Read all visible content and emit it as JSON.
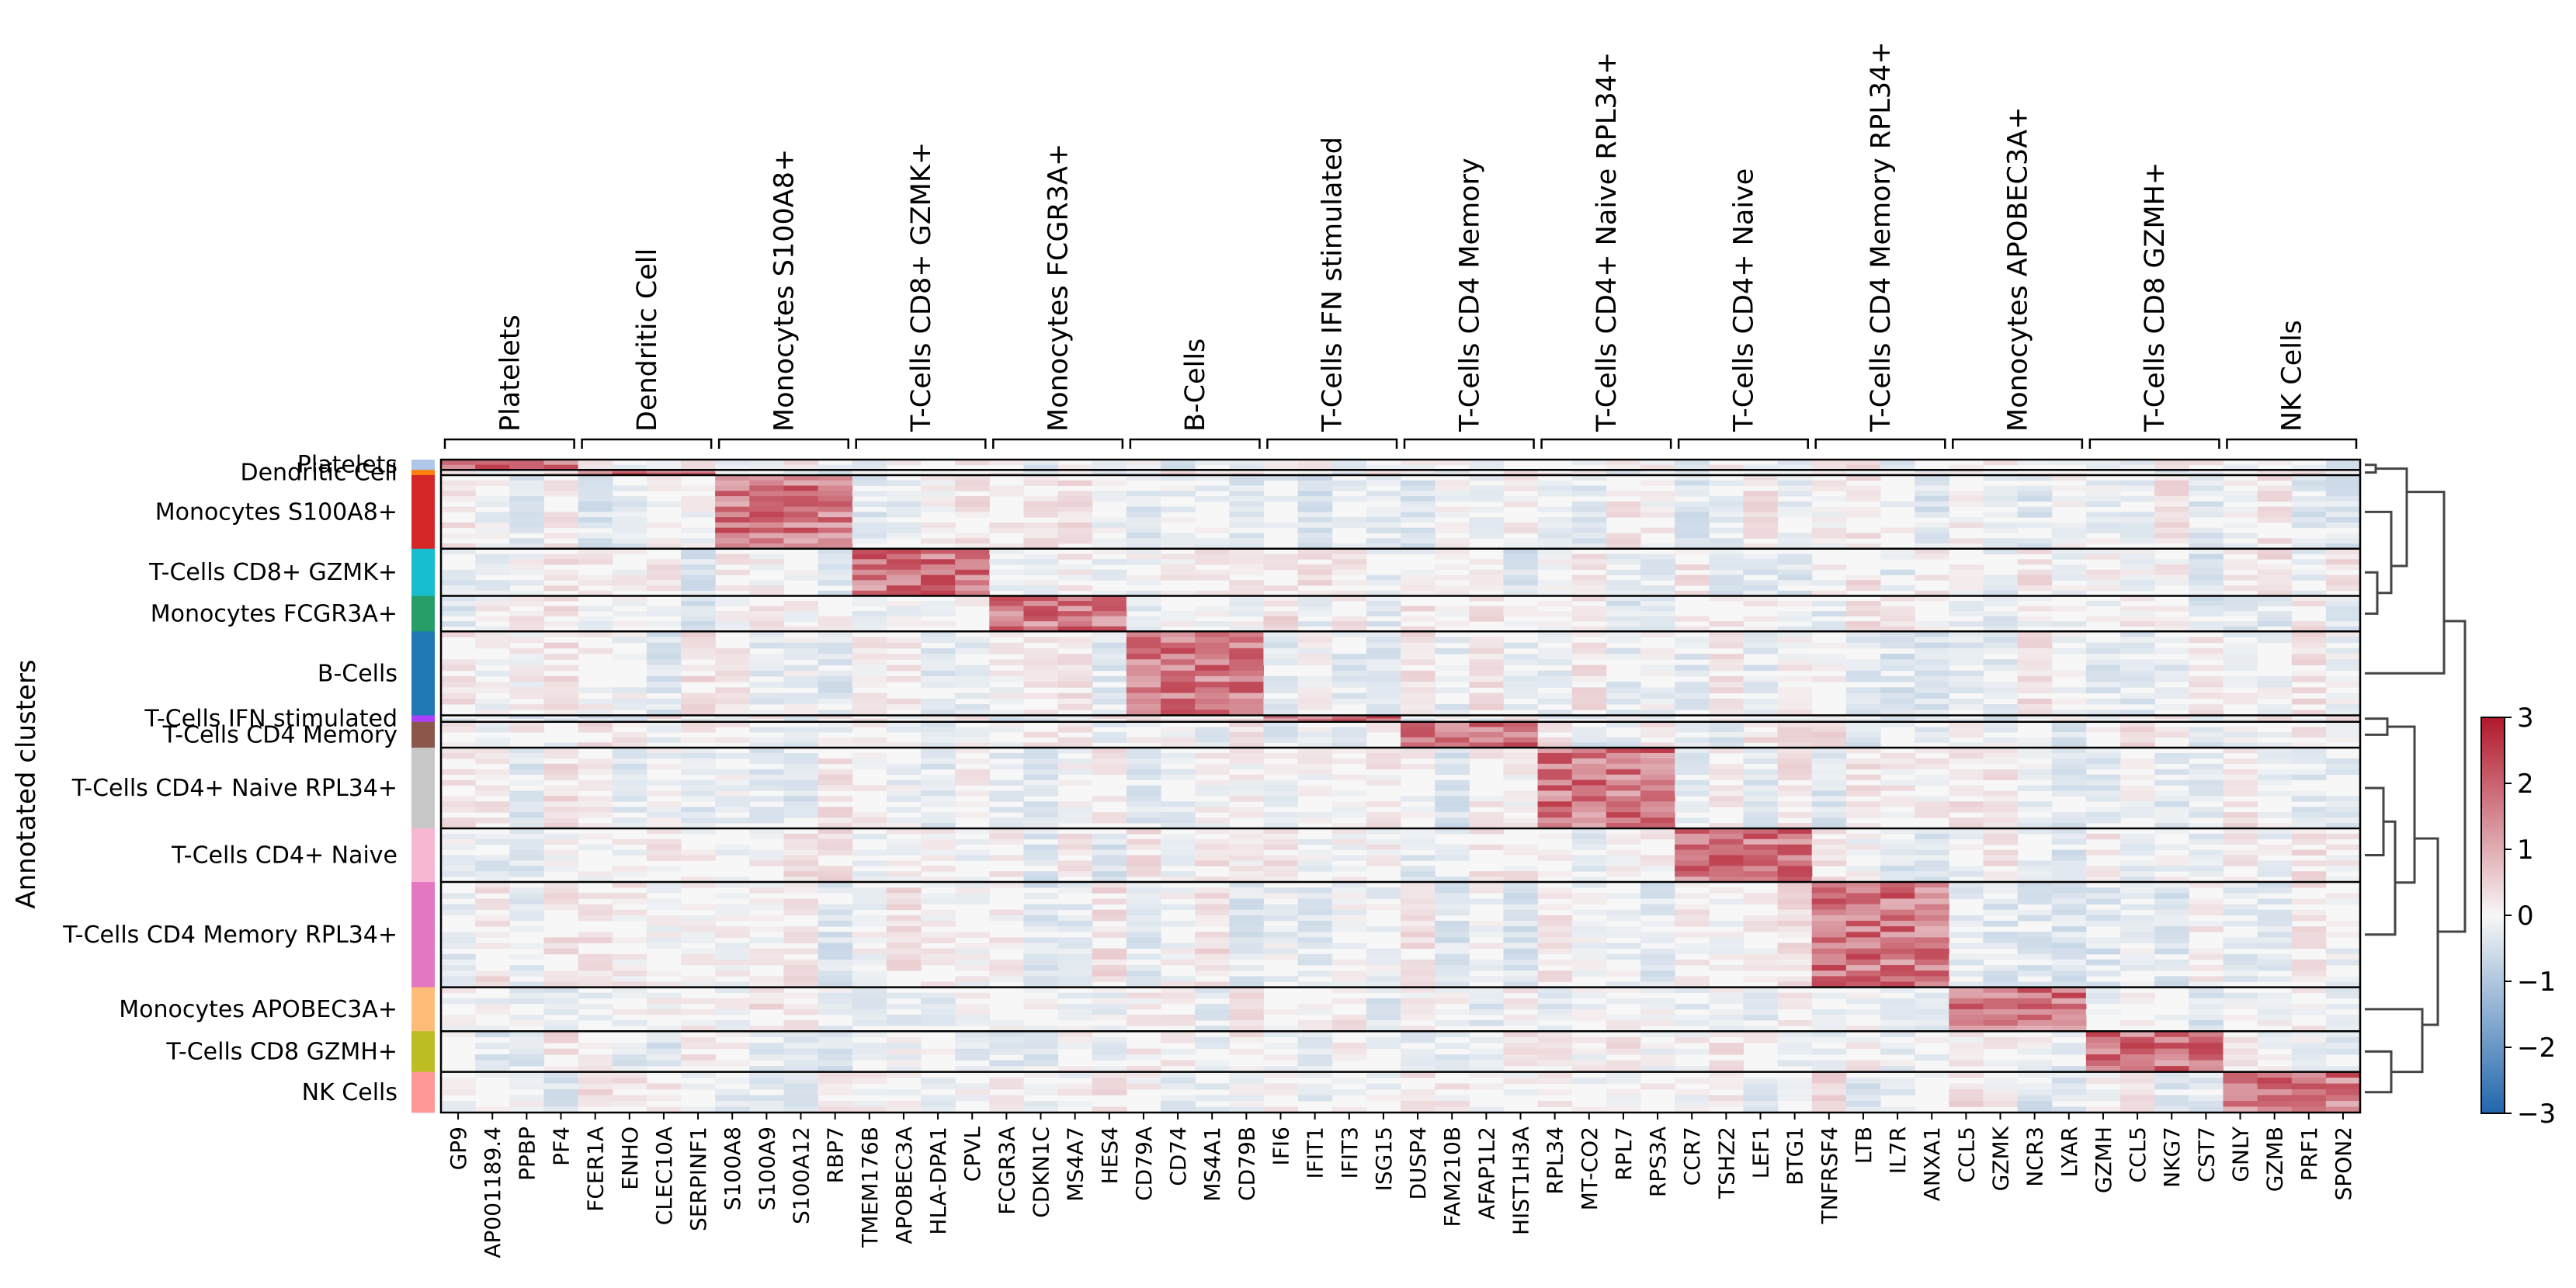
{
  "chart_data": {
    "type": "heatmap",
    "ylabel": "Annotated clusters",
    "colorbar": {
      "min": -3,
      "max": 3,
      "ticks": [
        "3",
        "2",
        "1",
        "0",
        "−1",
        "−2",
        "−3"
      ],
      "low_color": "#2166ac",
      "mid_color": "#f7f7f7",
      "high_color": "#b2182b"
    },
    "gene_groups": [
      {
        "label": "Platelets",
        "genes": [
          "GP9",
          "AP001189.4",
          "PPBP",
          "PF4"
        ]
      },
      {
        "label": "Dendritic Cell",
        "genes": [
          "FCER1A",
          "ENHO",
          "CLEC10A",
          "SERPINF1"
        ]
      },
      {
        "label": "Monocytes S100A8+",
        "genes": [
          "S100A8",
          "S100A9",
          "S100A12",
          "RBP7"
        ]
      },
      {
        "label": "T-Cells CD8+ GZMK+",
        "genes": [
          "TMEM176B",
          "APOBEC3A",
          "HLA-DPA1",
          "CPVL"
        ]
      },
      {
        "label": "Monocytes FCGR3A+",
        "genes": [
          "FCGR3A",
          "CDKN1C",
          "MS4A7",
          "HES4"
        ]
      },
      {
        "label": "B-Cells",
        "genes": [
          "CD79A",
          "CD74",
          "MS4A1",
          "CD79B"
        ]
      },
      {
        "label": "T-Cells IFN stimulated",
        "genes": [
          "IFI6",
          "IFIT1",
          "IFIT3",
          "ISG15"
        ]
      },
      {
        "label": "T-Cells CD4 Memory",
        "genes": [
          "DUSP4",
          "FAM210B",
          "AFAP1L2",
          "HIST1H3A"
        ]
      },
      {
        "label": "T-Cells CD4+ Naive RPL34+",
        "genes": [
          "RPL34",
          "MT-CO2",
          "RPL7",
          "RPS3A"
        ]
      },
      {
        "label": "T-Cells CD4+ Naive",
        "genes": [
          "CCR7",
          "TSHZ2",
          "LEF1",
          "BTG1"
        ]
      },
      {
        "label": "T-Cells CD4 Memory RPL34+",
        "genes": [
          "TNFRSF4",
          "LTB",
          "IL7R",
          "ANXA1"
        ]
      },
      {
        "label": "Monocytes APOBEC3A+",
        "genes": [
          "CCL5",
          "GZMK",
          "NCR3",
          "LYAR"
        ]
      },
      {
        "label": "T-Cells CD8 GZMH+",
        "genes": [
          "GZMH",
          "CCL5",
          "NKG7",
          "CST7"
        ]
      },
      {
        "label": "NK Cells",
        "genes": [
          "GNLY",
          "GZMB",
          "PRF1",
          "SPON2"
        ]
      }
    ],
    "clusters": [
      {
        "label": "Platelets",
        "color": "#aec7e8",
        "cell_fraction": 0.016,
        "marker_group": 0
      },
      {
        "label": "Dendritic Cell",
        "color": "#ff7f0e",
        "cell_fraction": 0.008,
        "marker_group": 1
      },
      {
        "label": "Monocytes S100A8+",
        "color": "#d62728",
        "cell_fraction": 0.114,
        "marker_group": 2
      },
      {
        "label": "T-Cells CD8+ GZMK+",
        "color": "#17becf",
        "cell_fraction": 0.073,
        "marker_group": 3
      },
      {
        "label": "Monocytes FCGR3A+",
        "color": "#279e68",
        "cell_fraction": 0.055,
        "marker_group": 4
      },
      {
        "label": "B-Cells",
        "color": "#1f77b4",
        "cell_fraction": 0.13,
        "marker_group": 5
      },
      {
        "label": "T-Cells IFN stimulated",
        "color": "#aa40fc",
        "cell_fraction": 0.01,
        "marker_group": 6
      },
      {
        "label": "T-Cells CD4 Memory",
        "color": "#8c564b",
        "cell_fraction": 0.04,
        "marker_group": 7
      },
      {
        "label": "T-Cells CD4+ Naive RPL34+",
        "color": "#c7c7c7",
        "cell_fraction": 0.125,
        "marker_group": 8
      },
      {
        "label": "T-Cells CD4+ Naive",
        "color": "#f7b6d2",
        "cell_fraction": 0.083,
        "marker_group": 9
      },
      {
        "label": "T-Cells CD4 Memory RPL34+",
        "color": "#e377c2",
        "cell_fraction": 0.163,
        "marker_group": 10
      },
      {
        "label": "Monocytes APOBEC3A+",
        "color": "#ffbb78",
        "cell_fraction": 0.068,
        "marker_group": 11
      },
      {
        "label": "T-Cells CD8 GZMH+",
        "color": "#bcbd22",
        "cell_fraction": 0.063,
        "marker_group": 12
      },
      {
        "label": "NK Cells",
        "color": "#ff9896",
        "cell_fraction": 0.063,
        "marker_group": 13
      }
    ]
  }
}
